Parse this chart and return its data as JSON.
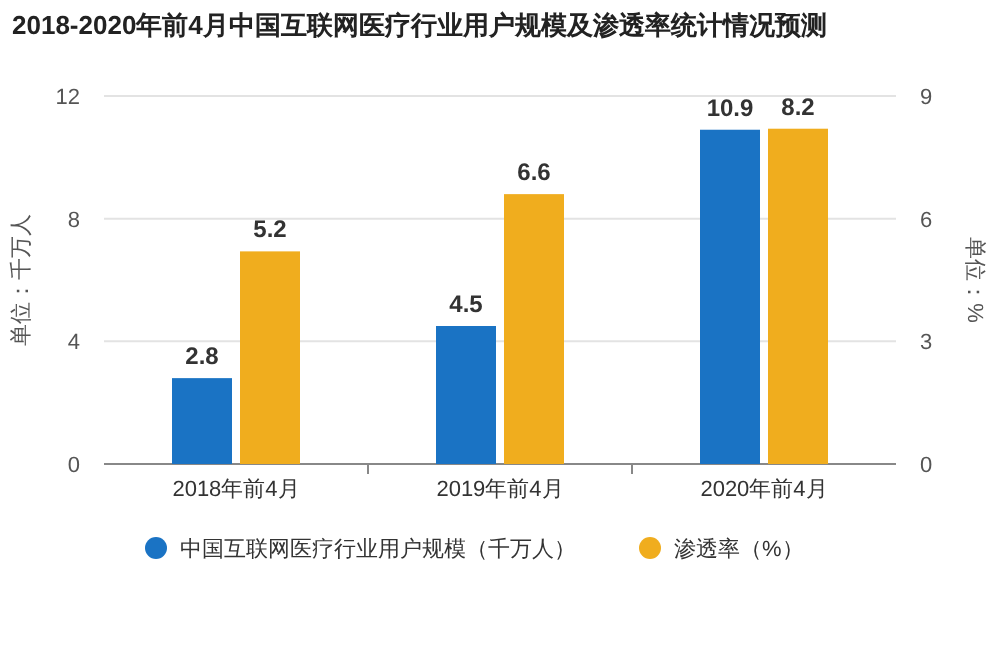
{
  "chart_data": {
    "type": "bar",
    "title": "2018-2020年前4月中国互联网医疗行业用户规模及渗透率统计情况预测",
    "categories": [
      "2018年前4月",
      "2019年前4月",
      "2020年前4月"
    ],
    "ylabel": "单位：千万人",
    "y2label": "单位：%",
    "ylim": [
      0,
      12
    ],
    "yticks": [
      0,
      4,
      8,
      12
    ],
    "y2lim": [
      0,
      9
    ],
    "y2ticks": [
      0,
      3,
      6,
      9
    ],
    "grid": "y",
    "legend": "bottom",
    "data_labels": true,
    "series": [
      {
        "name": "中国互联网医疗行业用户规模（千万人）",
        "color": "#1a73c4",
        "values": [
          2.8,
          4.5,
          10.9
        ]
      },
      {
        "name": "渗透率（%）",
        "color": "#f0ad1e",
        "values": [
          5.2,
          6.6,
          8.2
        ],
        "axis": "y2"
      }
    ]
  }
}
